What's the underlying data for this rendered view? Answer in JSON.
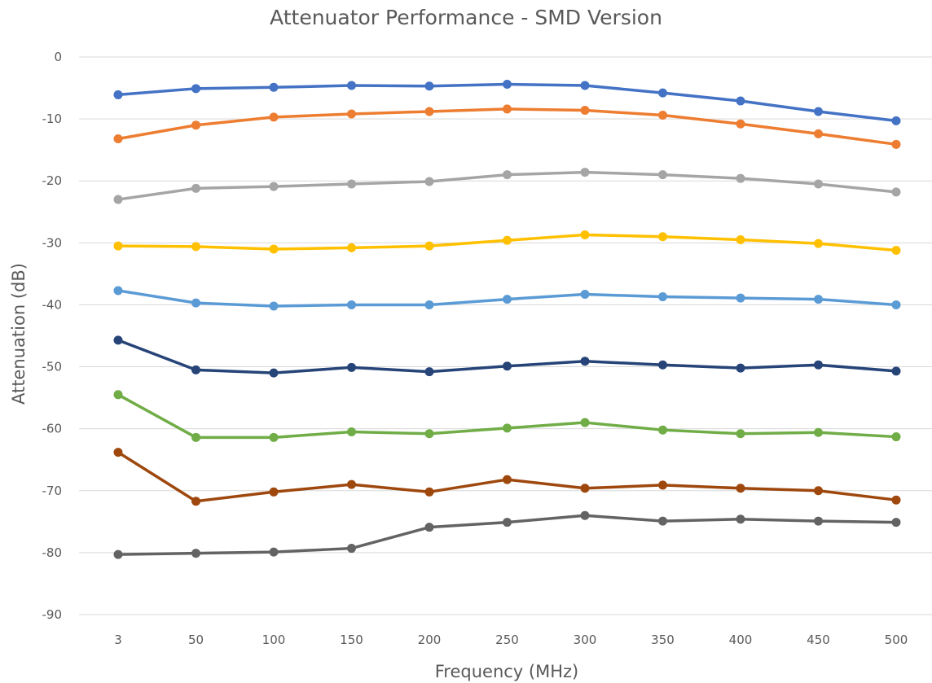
{
  "chart_data": {
    "type": "line",
    "title": "Attenuator Performance - SMD Version",
    "xlabel": "Frequency (MHz)",
    "ylabel": "Attenuation (dB)",
    "categories": [
      "3",
      "50",
      "100",
      "150",
      "200",
      "250",
      "300",
      "350",
      "400",
      "450",
      "500"
    ],
    "ylim": [
      -90,
      0
    ],
    "yticks": [
      0,
      -10,
      -20,
      -30,
      -40,
      -50,
      -60,
      -70,
      -80,
      -90
    ],
    "ytick_labels": [
      "0",
      "-10",
      "-20",
      "-30",
      "-40",
      "-50",
      "-60",
      "-70",
      "-80",
      "-90"
    ],
    "grid": true,
    "legend": "none",
    "series": [
      {
        "color": "#4472C4",
        "values": [
          -6.1,
          -5.1,
          -4.9,
          -4.6,
          -4.7,
          -4.4,
          -4.6,
          -5.8,
          -7.1,
          -8.8,
          -10.3
        ]
      },
      {
        "color": "#ED7D31",
        "values": [
          -13.2,
          -11.0,
          -9.7,
          -9.2,
          -8.8,
          -8.4,
          -8.6,
          -9.4,
          -10.8,
          -12.4,
          -14.1
        ]
      },
      {
        "color": "#A5A5A5",
        "values": [
          -23.0,
          -21.2,
          -20.9,
          -20.5,
          -20.1,
          -19.0,
          -18.6,
          -19.0,
          -19.6,
          -20.5,
          -21.8
        ]
      },
      {
        "color": "#FFC000",
        "values": [
          -30.5,
          -30.6,
          -31.0,
          -30.8,
          -30.5,
          -29.6,
          -28.7,
          -29.0,
          -29.5,
          -30.1,
          -31.2
        ]
      },
      {
        "color": "#5B9BD5",
        "values": [
          -37.7,
          -39.7,
          -40.2,
          -40.0,
          -40.0,
          -39.1,
          -38.3,
          -38.7,
          -38.9,
          -39.1,
          -40.0
        ]
      },
      {
        "color": "#264478",
        "values": [
          -45.7,
          -50.5,
          -51.0,
          -50.1,
          -50.8,
          -49.9,
          -49.1,
          -49.7,
          -50.2,
          -49.7,
          -50.7
        ]
      },
      {
        "color": "#70AD47",
        "values": [
          -54.5,
          -61.4,
          -61.4,
          -60.5,
          -60.8,
          -59.9,
          -59.0,
          -60.2,
          -60.8,
          -60.6,
          -61.3
        ]
      },
      {
        "color": "#9E480E",
        "values": [
          -63.8,
          -71.7,
          -70.2,
          -69.0,
          -70.2,
          -68.2,
          -69.6,
          -69.1,
          -69.6,
          -70.0,
          -71.5
        ]
      },
      {
        "color": "#636363",
        "values": [
          -80.3,
          -80.1,
          -79.9,
          -79.3,
          -75.9,
          -75.1,
          -74.0,
          -74.9,
          -74.6,
          -74.9,
          -75.1
        ]
      }
    ]
  }
}
